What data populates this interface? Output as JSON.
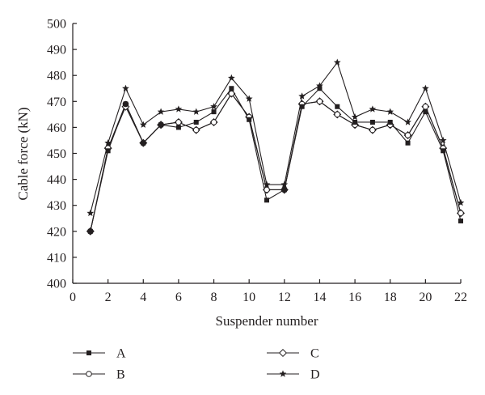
{
  "chart_data": {
    "type": "line",
    "xlabel": "Suspender number",
    "ylabel": "Cable force (kN)",
    "xlim": [
      0,
      22
    ],
    "ylim": [
      400,
      500
    ],
    "xticks": [
      0,
      2,
      4,
      6,
      8,
      10,
      12,
      14,
      16,
      18,
      20,
      22
    ],
    "yticks": [
      400,
      410,
      420,
      430,
      440,
      450,
      460,
      470,
      480,
      490,
      500
    ],
    "grid": false,
    "legend_position": "bottom",
    "x": [
      1,
      2,
      3,
      4,
      5,
      6,
      7,
      8,
      9,
      10,
      11,
      12,
      13,
      14,
      15,
      16,
      17,
      18,
      19,
      20,
      21,
      22
    ],
    "series": [
      {
        "name": "A",
        "marker": "square",
        "values": [
          420,
          451,
          469,
          454,
          461,
          460,
          462,
          466,
          475,
          463,
          432,
          436,
          468,
          475,
          468,
          462,
          462,
          462,
          454,
          466,
          451,
          424
        ]
      },
      {
        "name": "B",
        "marker": "circle-open",
        "values": [
          420,
          452,
          469,
          454,
          461,
          462,
          459,
          462,
          473,
          464,
          436,
          436,
          469,
          470,
          465,
          461,
          459,
          461,
          457,
          468,
          452,
          427
        ]
      },
      {
        "name": "C",
        "marker": "diamond-open",
        "values": [
          420,
          452,
          468,
          454,
          461,
          462,
          459,
          462,
          473,
          464,
          436,
          436,
          469,
          470,
          465,
          461,
          459,
          461,
          457,
          468,
          452,
          427
        ]
      },
      {
        "name": "D",
        "marker": "star",
        "values": [
          427,
          454,
          475,
          461,
          466,
          467,
          466,
          468,
          479,
          471,
          438,
          438,
          472,
          476,
          485,
          464,
          467,
          466,
          462,
          475,
          455,
          431
        ]
      }
    ]
  }
}
